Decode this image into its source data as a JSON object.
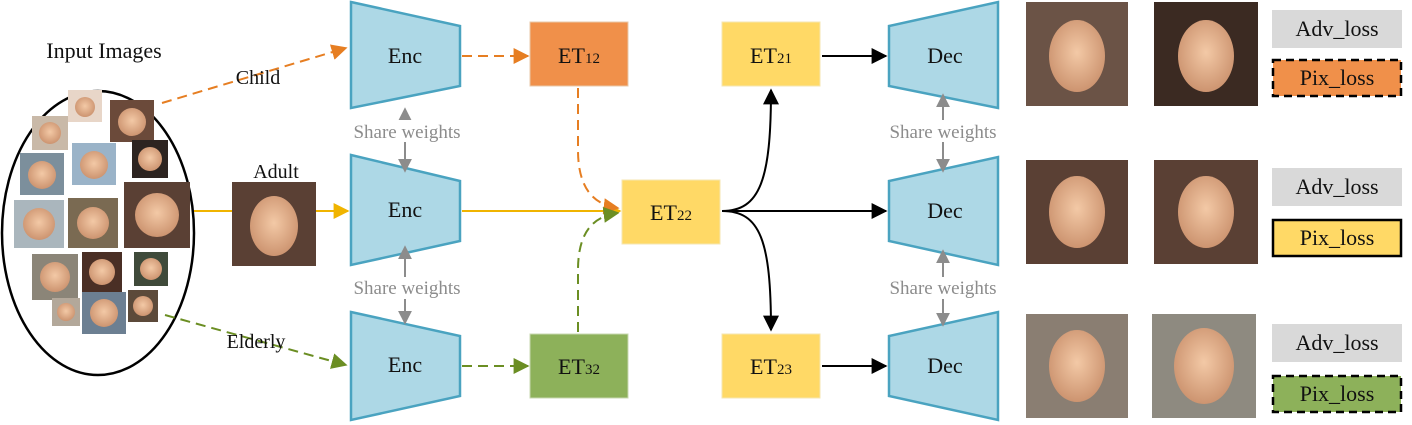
{
  "input": {
    "title": "Input Images",
    "child_label": "Child",
    "adult_label": "Adult",
    "elderly_label": "Elderly"
  },
  "share_label": "Share weights",
  "encoders": {
    "label": "Enc"
  },
  "decoders": {
    "label": "Dec"
  },
  "et_blocks": {
    "et12": {
      "base": "ET",
      "sub": "12"
    },
    "et22": {
      "base": "ET",
      "sub": "22"
    },
    "et32": {
      "base": "ET",
      "sub": "32"
    },
    "et21": {
      "base": "ET",
      "sub": "21"
    },
    "et23": {
      "base": "ET",
      "sub": "23"
    }
  },
  "losses": {
    "adv": "Adv_loss",
    "pix": "Pix_loss"
  },
  "colors": {
    "trapezoid_fill": "#add8e6",
    "trapezoid_stroke": "#4aa3c0",
    "child": "#f0904a",
    "child_line": "#e67e22",
    "adult": "#ffd966",
    "adult_line": "#f0b400",
    "elderly": "#8db15a",
    "elderly_line": "#6b8e23",
    "adv_bg": "#d9d9d9",
    "share_gray": "#8c8c8c"
  }
}
